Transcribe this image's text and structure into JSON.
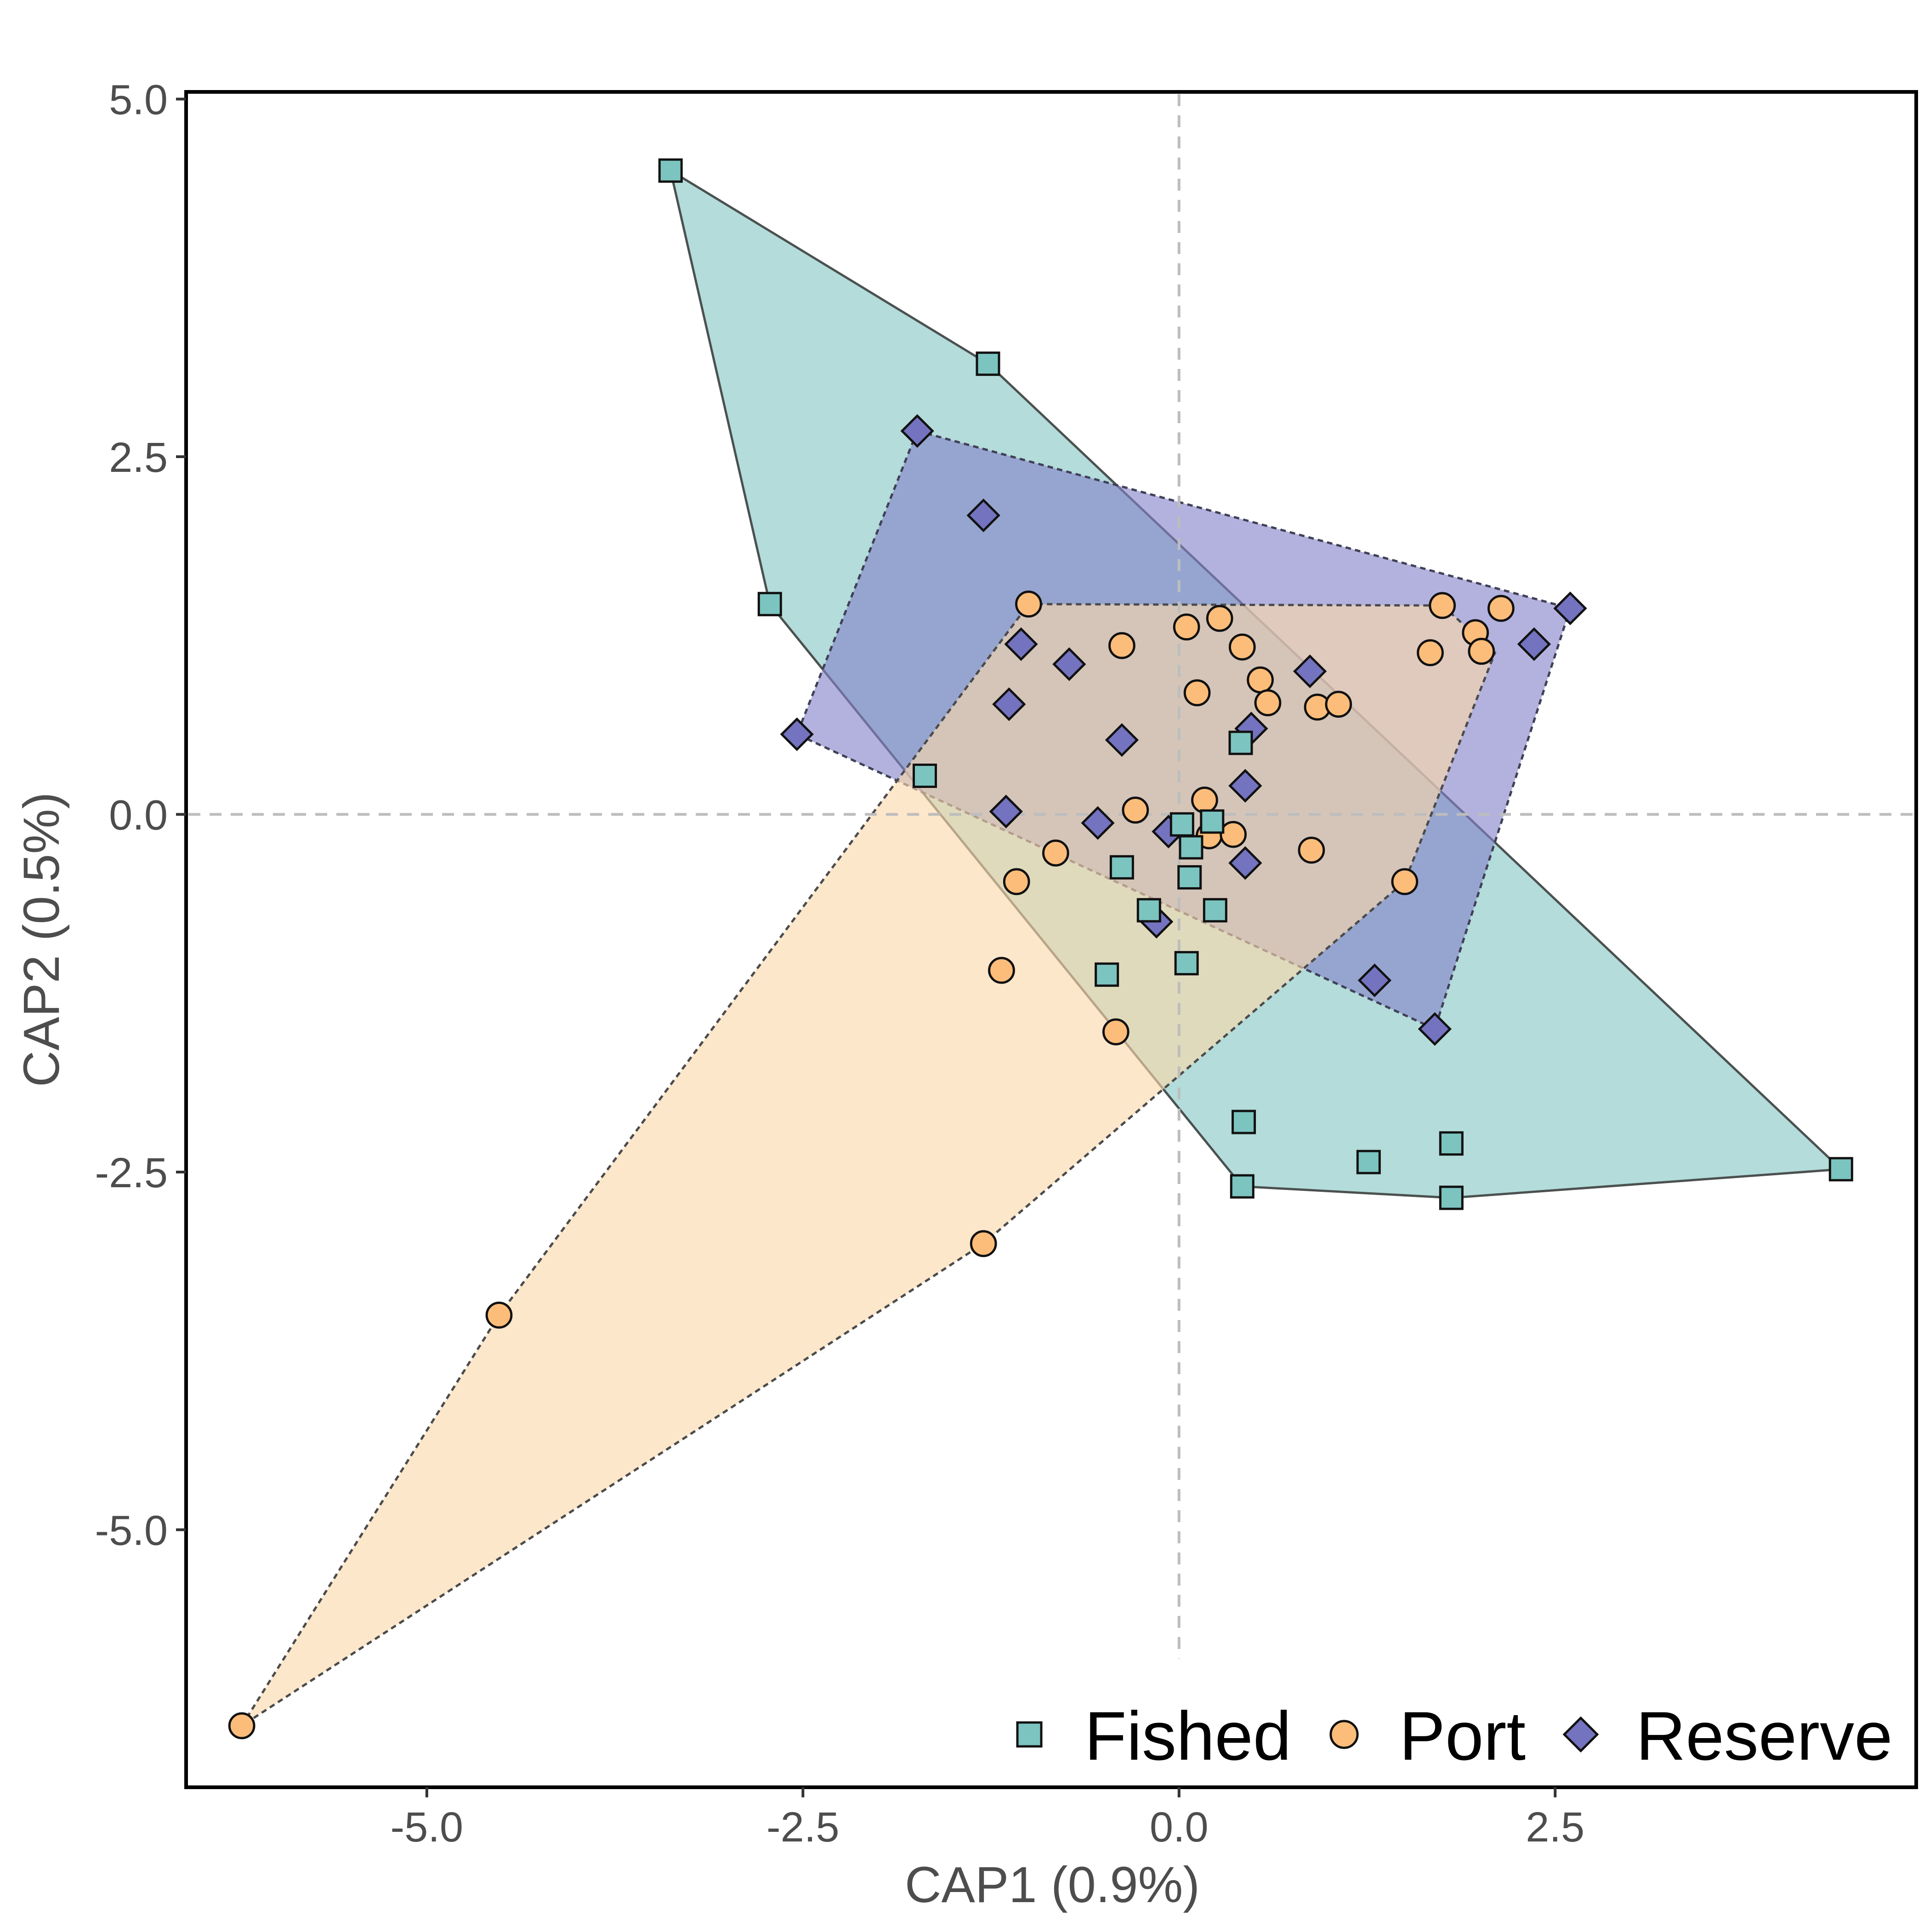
{
  "chart_data": {
    "type": "scatter",
    "xlabel": "CAP1 (0.9%)",
    "ylabel": "CAP2 (0.5%)",
    "xlim": [
      -6.6,
      4.9
    ],
    "ylim": [
      -6.8,
      5.05
    ],
    "xticks": [
      -5.0,
      -2.5,
      0.0,
      2.5
    ],
    "xtick_labels": [
      "-5.0",
      "-2.5",
      "0.0",
      "2.5"
    ],
    "yticks": [
      5.0,
      2.5,
      0.0,
      -2.5,
      -5.0
    ],
    "ytick_labels": [
      "5.0",
      "2.5",
      "0.0",
      "-2.5",
      "-5.0"
    ],
    "reference_lines": {
      "x": 0,
      "y": 0,
      "style": "dashed"
    },
    "grid": false,
    "legend": {
      "position": "bottom-right"
    },
    "series": [
      {
        "name": "Fished",
        "marker": "square",
        "color": "#7cc4c0",
        "hull_fill": "#b3dcda",
        "hull_stroke": "#4b5150",
        "hull_dash": false,
        "hull": [
          [
            -3.38,
            4.5
          ],
          [
            -1.27,
            3.15
          ],
          [
            4.4,
            -2.48
          ],
          [
            1.81,
            -2.68
          ],
          [
            0.42,
            -2.6
          ],
          [
            -2.72,
            1.47
          ]
        ],
        "points": [
          [
            -3.38,
            4.5
          ],
          [
            -1.27,
            3.15
          ],
          [
            -2.72,
            1.47
          ],
          [
            -1.69,
            0.27
          ],
          [
            0.41,
            0.5
          ],
          [
            0.02,
            -0.07
          ],
          [
            0.22,
            -0.05
          ],
          [
            0.08,
            -0.23
          ],
          [
            -0.38,
            -0.37
          ],
          [
            0.07,
            -0.44
          ],
          [
            -0.2,
            -0.67
          ],
          [
            0.24,
            -0.67
          ],
          [
            -0.48,
            -1.12
          ],
          [
            0.05,
            -1.04
          ],
          [
            0.43,
            -2.15
          ],
          [
            1.26,
            -2.43
          ],
          [
            1.81,
            -2.3
          ],
          [
            4.4,
            -2.48
          ],
          [
            0.42,
            -2.6
          ],
          [
            1.81,
            -2.68
          ]
        ]
      },
      {
        "name": "Port",
        "marker": "circle",
        "color": "#fdbd7a",
        "hull_fill": "#fcd9ab",
        "hull_stroke": "#4b4b4b",
        "hull_dash": true,
        "hull": [
          [
            -6.23,
            -6.37
          ],
          [
            -4.52,
            -3.5
          ],
          [
            -1.0,
            1.47
          ],
          [
            1.75,
            1.46
          ],
          [
            2.1,
            1.13
          ],
          [
            1.5,
            -0.47
          ],
          [
            -1.3,
            -3.0
          ]
        ],
        "points": [
          [
            -1.0,
            1.47
          ],
          [
            0.05,
            1.31
          ],
          [
            0.27,
            1.37
          ],
          [
            -0.38,
            1.18
          ],
          [
            0.42,
            1.17
          ],
          [
            0.12,
            0.85
          ],
          [
            0.54,
            0.94
          ],
          [
            0.59,
            0.78
          ],
          [
            0.92,
            0.75
          ],
          [
            1.06,
            0.77
          ],
          [
            1.75,
            1.46
          ],
          [
            2.14,
            1.44
          ],
          [
            1.97,
            1.27
          ],
          [
            2.01,
            1.14
          ],
          [
            1.67,
            1.13
          ],
          [
            0.17,
            0.1
          ],
          [
            -0.29,
            0.03
          ],
          [
            0.2,
            -0.15
          ],
          [
            0.36,
            -0.14
          ],
          [
            -0.82,
            -0.27
          ],
          [
            0.88,
            -0.25
          ],
          [
            -1.08,
            -0.47
          ],
          [
            1.5,
            -0.47
          ],
          [
            -1.18,
            -1.09
          ],
          [
            -0.42,
            -1.52
          ],
          [
            -1.3,
            -3.0
          ],
          [
            -4.52,
            -3.5
          ],
          [
            -6.23,
            -6.37
          ]
        ]
      },
      {
        "name": "Reserve",
        "marker": "diamond",
        "color": "#7473c0",
        "hull_fill": "#8583c9",
        "hull_stroke": "#404057",
        "hull_dash": true,
        "hull": [
          [
            -1.74,
            2.68
          ],
          [
            2.6,
            1.44
          ],
          [
            1.7,
            -1.5
          ],
          [
            -2.54,
            0.56
          ]
        ],
        "points": [
          [
            -1.74,
            2.68
          ],
          [
            -1.3,
            2.09
          ],
          [
            -1.05,
            1.19
          ],
          [
            -0.73,
            1.05
          ],
          [
            0.87,
            1.0
          ],
          [
            -1.13,
            0.77
          ],
          [
            -0.38,
            0.52
          ],
          [
            0.48,
            0.6
          ],
          [
            -2.54,
            0.56
          ],
          [
            0.44,
            0.2
          ],
          [
            -1.15,
            0.02
          ],
          [
            -0.54,
            -0.06
          ],
          [
            -0.07,
            -0.12
          ],
          [
            0.44,
            -0.34
          ],
          [
            -0.15,
            -0.75
          ],
          [
            1.3,
            -1.16
          ],
          [
            1.7,
            -1.5
          ],
          [
            2.36,
            1.19
          ],
          [
            2.6,
            1.44
          ]
        ]
      }
    ]
  }
}
